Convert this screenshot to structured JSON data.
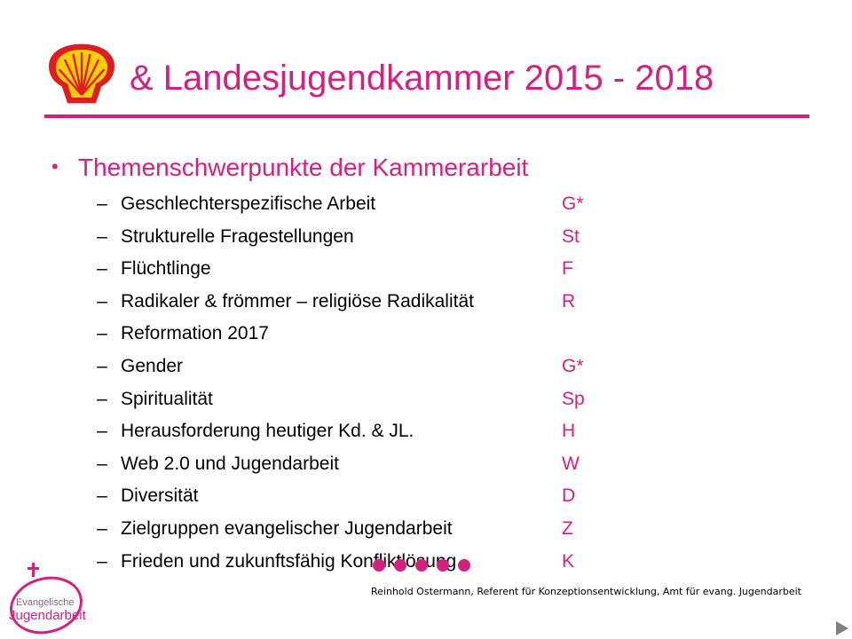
{
  "slide": {
    "title": "& Landesjugendkammer 2015 - 2018",
    "main_bullet": "Themenschwerpunkte der Kammerarbeit",
    "bullet_symbol": "•",
    "dash_symbol": "–",
    "items": [
      {
        "label": "Geschlechterspezifische Arbeit",
        "code": "G*"
      },
      {
        "label": "Strukturelle Fragestellungen",
        "code": "St"
      },
      {
        "label": "Flüchtlinge",
        "code": "F"
      },
      {
        "label": "Radikaler & frömmer – religiöse Radikalität",
        "code": "R"
      },
      {
        "label": "Reformation 2017",
        "code": ""
      },
      {
        "label": "Gender",
        "code": "G*"
      },
      {
        "label": "Spiritualität",
        "code": "Sp"
      },
      {
        "label": "Herausforderung heutiger Kd. & JL.",
        "code": "H"
      },
      {
        "label": "Web 2.0 und Jugendarbeit",
        "code": "W"
      },
      {
        "label": "Diversität",
        "code": "D"
      },
      {
        "label": "Zielgruppen evangelischer Jugendarbeit",
        "code": "Z"
      },
      {
        "label": "Frieden und zukunftsfähig Konfliktlösung",
        "code": "K"
      }
    ],
    "footer": "Reinhold Ostermann, Referent für Konzeptionsentwicklung, Amt für evang. Jugendarbeit"
  },
  "logo": {
    "line1": "Evangelische",
    "line2": "Jugendarbeit"
  },
  "icons": {
    "shell_logo": "shell-icon",
    "next": "play-triangle-icon"
  },
  "colors": {
    "accent": "#d4207f",
    "shell_red": "#dd1d21",
    "shell_yellow": "#fbce07",
    "text": "#000000"
  }
}
